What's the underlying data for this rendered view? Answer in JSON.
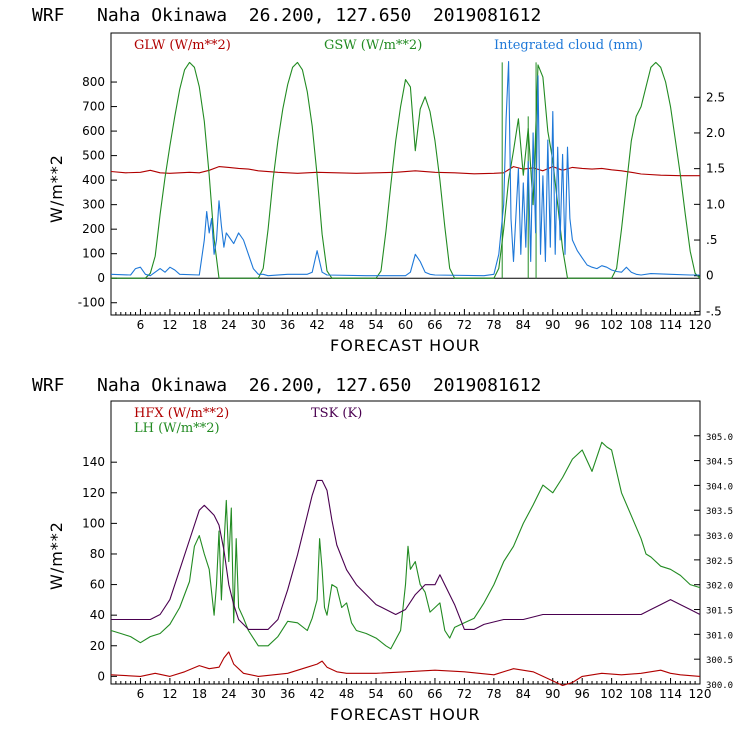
{
  "colors": {
    "red": "#b00000",
    "green": "#228b22",
    "blue": "#1e78d8",
    "purple": "#4a0050",
    "black": "#000000"
  },
  "chart_data": [
    {
      "type": "line",
      "title": "WRF   Naha Okinawa  26.200, 127.650  2019081612",
      "xlabel": "FORECAST HOUR",
      "ylabel": "W/m**2",
      "xlim": [
        0,
        120
      ],
      "ylim": [
        -150,
        1000
      ],
      "y2lim": [
        -0.55,
        3.4
      ],
      "x_ticks": [
        "6",
        "12",
        "18",
        "24",
        "30",
        "36",
        "42",
        "48",
        "54",
        "60",
        "66",
        "72",
        "78",
        "84",
        "90",
        "96",
        "102",
        "108",
        "114",
        "120"
      ],
      "y_ticks": [
        "-100",
        "0",
        "100",
        "200",
        "300",
        "400",
        "500",
        "600",
        "700",
        "800"
      ],
      "y2_ticks": [
        "-.5",
        "0",
        ".5",
        "1.0",
        "1.5",
        "2.0",
        "2.5"
      ],
      "series": [
        {
          "name": "GLW (W/m**2)",
          "color": "red",
          "axis": "left",
          "x": [
            0,
            3,
            6,
            8,
            10,
            12,
            14,
            16,
            18,
            20,
            22,
            24,
            26,
            28,
            30,
            34,
            38,
            42,
            46,
            50,
            54,
            58,
            62,
            66,
            70,
            74,
            78,
            80,
            82,
            84,
            86,
            88,
            90,
            92,
            94,
            96,
            98,
            100,
            102,
            104,
            106,
            108,
            112,
            116,
            120
          ],
          "y": [
            435,
            430,
            432,
            440,
            430,
            428,
            430,
            432,
            430,
            440,
            455,
            452,
            448,
            445,
            438,
            432,
            428,
            432,
            430,
            428,
            430,
            432,
            438,
            432,
            430,
            426,
            428,
            430,
            455,
            445,
            450,
            438,
            455,
            440,
            452,
            448,
            445,
            448,
            442,
            438,
            432,
            425,
            420,
            418,
            418
          ]
        },
        {
          "name": "GSW (W/m**2)",
          "color": "green",
          "axis": "left",
          "x": [
            0,
            7,
            8,
            9,
            10,
            11,
            12,
            13,
            14,
            15,
            16,
            17,
            18,
            19,
            20,
            21,
            22,
            23,
            30,
            31,
            32,
            33,
            34,
            35,
            36,
            37,
            38,
            39,
            40,
            41,
            42,
            43,
            44,
            45,
            46,
            47,
            54,
            55,
            56,
            57,
            58,
            59,
            60,
            61,
            62,
            63,
            64,
            65,
            66,
            67,
            68,
            69,
            70,
            71,
            78,
            79,
            80,
            81,
            82,
            83,
            84,
            85,
            86,
            87,
            88,
            89,
            90,
            91,
            92,
            93,
            94,
            102,
            103,
            104,
            105,
            106,
            107,
            108,
            109,
            110,
            111,
            112,
            113,
            114,
            115,
            116,
            117,
            118,
            119,
            120
          ],
          "y": [
            0,
            0,
            20,
            90,
            260,
            410,
            540,
            660,
            770,
            850,
            880,
            860,
            780,
            640,
            420,
            160,
            0,
            0,
            0,
            40,
            200,
            400,
            560,
            690,
            790,
            860,
            880,
            850,
            760,
            620,
            420,
            180,
            30,
            0,
            0,
            0,
            0,
            30,
            190,
            380,
            560,
            700,
            810,
            780,
            520,
            690,
            740,
            680,
            560,
            400,
            210,
            40,
            0,
            0,
            0,
            40,
            200,
            400,
            520,
            650,
            420,
            610,
            300,
            870,
            820,
            600,
            480,
            300,
            120,
            0,
            0,
            0,
            40,
            200,
            380,
            560,
            660,
            700,
            780,
            860,
            880,
            860,
            800,
            700,
            560,
            420,
            260,
            110,
            20,
            0
          ],
          "vx": [
            79.7,
            81.2,
            84.0,
            85.0,
            86.0,
            86.6,
            87.2
          ],
          "vy": [
            880,
            0,
            0,
            660,
            0,
            880,
            0
          ]
        },
        {
          "name": "Integrated cloud (mm)",
          "color": "blue",
          "axis": "right",
          "x": [
            0,
            4,
            5,
            6,
            7,
            8,
            10,
            11,
            12,
            13,
            14,
            18,
            19,
            19.5,
            20,
            20.5,
            21,
            21.5,
            22,
            22.5,
            23,
            23.5,
            24,
            25,
            26,
            27,
            28,
            29,
            30,
            31,
            32,
            36,
            40,
            41,
            42,
            43,
            44,
            52,
            60,
            61,
            62,
            63,
            64,
            65,
            66,
            76,
            78,
            79,
            80,
            80.5,
            81,
            81.5,
            82,
            83,
            83.5,
            84,
            84.5,
            85,
            85.5,
            86,
            86.5,
            87,
            87.5,
            88,
            88.5,
            89,
            89.5,
            90,
            90.5,
            91,
            91.5,
            92,
            92.5,
            93,
            93.5,
            94,
            95,
            96,
            97,
            98,
            99,
            100,
            101,
            102,
            103,
            104,
            105,
            106,
            107,
            108,
            110,
            114,
            118,
            120
          ],
          "y": [
            0.02,
            0.01,
            0.1,
            0.12,
            0.02,
            0,
            0.1,
            0.05,
            0.12,
            0.08,
            0.02,
            0.01,
            0.5,
            0.9,
            0.6,
            0.8,
            0.3,
            0.5,
            1.05,
            0.7,
            0.4,
            0.6,
            0.55,
            0.45,
            0.6,
            0.5,
            0.3,
            0.1,
            0.02,
            0.02,
            0,
            0.02,
            0.02,
            0.05,
            0.35,
            0.05,
            0.01,
            0,
            0,
            0.05,
            0.3,
            0.2,
            0.05,
            0.02,
            0.01,
            0,
            0.02,
            0.3,
            1.0,
            2.2,
            3.0,
            0.8,
            0.2,
            1.5,
            0.3,
            1.3,
            0.4,
            1.6,
            0.2,
            2.0,
            0.6,
            2.8,
            0.3,
            1.4,
            0.2,
            1.9,
            0.4,
            2.3,
            0.3,
            1.8,
            0.5,
            1.7,
            0.3,
            1.8,
            0.8,
            0.5,
            0.35,
            0.25,
            0.15,
            0.12,
            0.1,
            0.14,
            0.12,
            0.08,
            0.06,
            0.05,
            0.12,
            0.05,
            0.02,
            0.01,
            0.03,
            0.02,
            0.01,
            0.01
          ]
        }
      ]
    },
    {
      "type": "line",
      "title": "WRF   Naha Okinawa  26.200, 127.650  2019081612",
      "xlabel": "FORECAST HOUR",
      "ylabel": "W/m**2",
      "xlim": [
        0,
        120
      ],
      "ylim": [
        -5,
        180
      ],
      "y2lim": [
        300.0,
        305.7
      ],
      "x_ticks": [
        "6",
        "12",
        "18",
        "24",
        "30",
        "36",
        "42",
        "48",
        "54",
        "60",
        "66",
        "72",
        "78",
        "84",
        "90",
        "96",
        "102",
        "108",
        "114",
        "120"
      ],
      "y_ticks": [
        "0",
        "20",
        "40",
        "60",
        "80",
        "100",
        "120",
        "140"
      ],
      "y2_ticks": [
        "300.0",
        "300.5",
        "301.0",
        "301.5",
        "302.0",
        "302.5",
        "303.0",
        "303.5",
        "304.0",
        "304.5",
        "305.0"
      ],
      "series": [
        {
          "name": "HFX (W/m**2)",
          "color": "red",
          "axis": "left",
          "x": [
            0,
            6,
            9,
            12,
            15,
            18,
            20,
            22,
            23,
            24,
            25,
            27,
            30,
            36,
            40,
            42,
            43,
            44,
            46,
            48,
            54,
            60,
            66,
            72,
            78,
            82,
            86,
            90,
            92,
            94,
            96,
            100,
            104,
            108,
            112,
            114,
            116,
            120
          ],
          "y": [
            1,
            0,
            2,
            0,
            3,
            7,
            5,
            6,
            12,
            16,
            8,
            2,
            0,
            2,
            6,
            8,
            10,
            6,
            3,
            2,
            2,
            3,
            4,
            3,
            1,
            5,
            3,
            -3,
            -6,
            -4,
            0,
            2,
            1,
            2,
            4,
            2,
            1,
            0
          ]
        },
        {
          "name": "LH (W/m**2)",
          "color": "green",
          "axis": "left",
          "x": [
            0,
            2,
            4,
            6,
            8,
            10,
            12,
            14,
            16,
            17,
            18,
            19,
            20,
            20.5,
            21,
            21.5,
            22,
            22.5,
            23,
            23.5,
            24,
            24.5,
            25,
            25.5,
            26,
            27,
            28,
            30,
            32,
            34,
            36,
            38,
            40,
            41,
            42,
            42.5,
            43,
            43.5,
            44,
            45,
            46,
            47,
            48,
            49,
            50,
            52,
            54,
            56,
            57,
            58,
            59,
            60,
            60.5,
            61,
            62,
            63,
            64,
            65,
            66,
            67,
            68,
            69,
            70,
            72,
            74,
            76,
            78,
            80,
            82,
            84,
            86,
            88,
            90,
            92,
            94,
            96,
            98,
            100,
            101,
            102,
            104,
            106,
            108,
            109,
            110,
            112,
            114,
            116,
            118,
            120
          ],
          "y": [
            30,
            28,
            26,
            22,
            26,
            28,
            34,
            45,
            62,
            85,
            92,
            80,
            70,
            55,
            40,
            60,
            95,
            50,
            85,
            115,
            75,
            110,
            35,
            90,
            45,
            38,
            30,
            20,
            20,
            26,
            36,
            35,
            30,
            38,
            50,
            90,
            70,
            45,
            40,
            60,
            58,
            45,
            48,
            35,
            30,
            28,
            25,
            20,
            18,
            24,
            30,
            60,
            85,
            70,
            75,
            60,
            55,
            42,
            45,
            48,
            30,
            25,
            32,
            35,
            38,
            48,
            60,
            75,
            85,
            100,
            112,
            125,
            120,
            130,
            142,
            148,
            134,
            153,
            150,
            148,
            120,
            105,
            90,
            80,
            78,
            72,
            70,
            66,
            60,
            58
          ],
          "vx": [],
          "vy": []
        },
        {
          "name": "TSK (K)",
          "color": "purple",
          "axis": "right",
          "x": [
            0,
            4,
            8,
            10,
            12,
            14,
            16,
            18,
            19,
            20,
            21,
            22,
            23,
            24,
            25,
            26,
            27,
            28,
            29,
            30,
            32,
            34,
            36,
            38,
            40,
            41,
            42,
            43,
            44,
            45,
            46,
            48,
            50,
            52,
            54,
            56,
            58,
            60,
            62,
            64,
            66,
            67,
            68,
            70,
            72,
            74,
            76,
            80,
            84,
            88,
            92,
            96,
            100,
            104,
            108,
            110,
            112,
            114,
            116,
            118,
            120
          ],
          "y": [
            301.3,
            301.3,
            301.3,
            301.4,
            301.7,
            302.3,
            302.9,
            303.5,
            303.6,
            303.5,
            303.4,
            303.2,
            302.7,
            302.0,
            301.6,
            301.3,
            301.2,
            301.1,
            301.1,
            301.1,
            301.1,
            301.3,
            301.9,
            302.6,
            303.4,
            303.8,
            304.1,
            304.1,
            303.9,
            303.3,
            302.8,
            302.3,
            302.0,
            301.8,
            301.6,
            301.5,
            301.4,
            301.5,
            301.8,
            302.0,
            302.0,
            302.2,
            302.0,
            301.6,
            301.1,
            301.1,
            301.2,
            301.3,
            301.3,
            301.4,
            301.4,
            301.4,
            301.4,
            301.4,
            301.4,
            301.5,
            301.6,
            301.7,
            301.6,
            301.5,
            301.4
          ]
        }
      ]
    }
  ]
}
